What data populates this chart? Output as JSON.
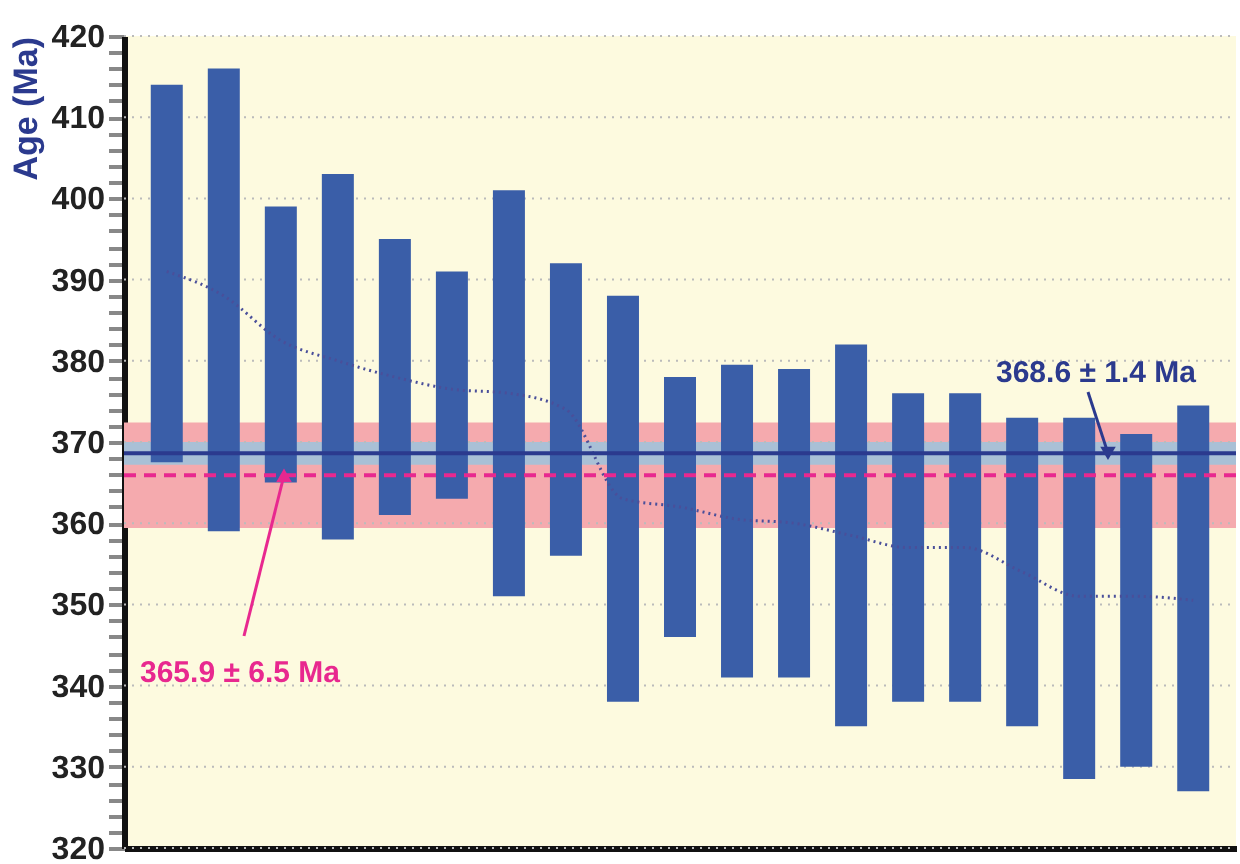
{
  "chart_data": {
    "type": "bar",
    "ylabel": "Age (Ma)",
    "categories": [
      null,
      null,
      null,
      null,
      null,
      null,
      null,
      null,
      null,
      null,
      null,
      null,
      null,
      null,
      null,
      null,
      null,
      null,
      null
    ],
    "series": [
      {
        "type": "bar",
        "color": "#3a5ea8",
        "base": [
          367.5,
          359,
          365,
          358,
          361,
          363,
          351,
          356,
          338,
          346,
          341,
          341,
          335,
          338,
          338,
          335,
          328.5,
          330,
          327
        ],
        "values": [
          46.5,
          57,
          34,
          45,
          34,
          28,
          50,
          36,
          50,
          32,
          38.5,
          38,
          47,
          38,
          38,
          38,
          44.5,
          41,
          47.5
        ]
      },
      {
        "type": "line",
        "color": "#4a4f9a",
        "line_style": "dotted",
        "values": [
          391,
          388,
          382.5,
          380,
          378,
          376.5,
          376,
          374,
          363,
          362,
          360.5,
          360,
          358.5,
          357,
          357,
          354,
          351,
          351,
          350.5
        ]
      }
    ],
    "ylim": [
      320,
      420
    ],
    "yticks": [
      320,
      {
        "value": 322,
        "label": null
      },
      {
        "value": 324,
        "label": null
      },
      {
        "value": 326,
        "label": null
      },
      {
        "value": 328,
        "label": null
      },
      330,
      {
        "value": 332,
        "label": null
      },
      {
        "value": 334,
        "label": null
      },
      {
        "value": 336,
        "label": null
      },
      {
        "value": 338,
        "label": null
      },
      340,
      {
        "value": 342,
        "label": null
      },
      {
        "value": 344,
        "label": null
      },
      {
        "value": 346,
        "label": null
      },
      {
        "value": 348,
        "label": null
      },
      350,
      {
        "value": 352,
        "label": null
      },
      {
        "value": 354,
        "label": null
      },
      {
        "value": 356,
        "label": null
      },
      {
        "value": 358,
        "label": null
      },
      360,
      {
        "value": 362,
        "label": null
      },
      {
        "value": 364,
        "label": null
      },
      {
        "value": 366,
        "label": null
      },
      {
        "value": 368,
        "label": null
      },
      370,
      {
        "value": 372,
        "label": null
      },
      {
        "value": 374,
        "label": null
      },
      {
        "value": 376,
        "label": null
      },
      {
        "value": 378,
        "label": null
      },
      380,
      {
        "value": 382,
        "label": null
      },
      {
        "value": 384,
        "label": null
      },
      {
        "value": 386,
        "label": null
      },
      {
        "value": 388,
        "label": null
      },
      390,
      {
        "value": 392,
        "label": null
      },
      {
        "value": 394,
        "label": null
      },
      {
        "value": 396,
        "label": null
      },
      {
        "value": 398,
        "label": null
      },
      400,
      {
        "value": 402,
        "label": null
      },
      {
        "value": 404,
        "label": null
      },
      {
        "value": 406,
        "label": null
      },
      {
        "value": 408,
        "label": null
      },
      410,
      {
        "value": 412,
        "label": null
      },
      {
        "value": 414,
        "label": null
      },
      {
        "value": 416,
        "label": null
      },
      {
        "value": 418,
        "label": null
      },
      420
    ],
    "grid": "y",
    "tick_labels": "y",
    "bands": [
      {
        "axis": "y",
        "from": 359.4,
        "to": 372.4,
        "color": "#f5aaae"
      },
      {
        "axis": "y",
        "from": 367.2,
        "to": 370.0,
        "color": "#a9c0d6"
      }
    ],
    "ref_lines": [
      {
        "axis": "y",
        "value": 368.6,
        "label": "368.6 ± 1.4 Ma",
        "color": "#2b3a8e",
        "line_style": "solid"
      },
      {
        "axis": "y",
        "value": 365.9,
        "label": "365.9 ± 6.5 Ma",
        "color": "#e8288f",
        "line_style": "dashed"
      }
    ]
  }
}
